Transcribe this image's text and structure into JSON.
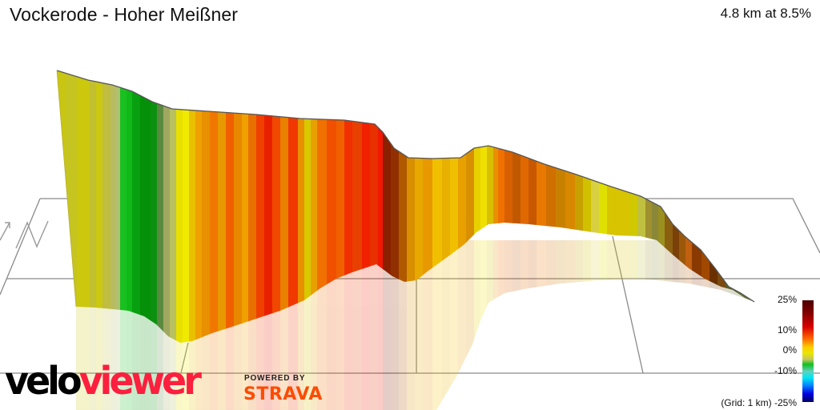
{
  "header": {
    "title": "Vockerode - Hoher Meißner",
    "stats": "4.8 km at 8.5%"
  },
  "legend": {
    "labels": [
      "25%",
      "10%",
      "0%",
      "-10%",
      "(Grid: 1 km) -25%"
    ],
    "grid_note": "(Grid: 1 km)",
    "gradient_stops": [
      {
        "value": "25%",
        "color": "#4a0000"
      },
      {
        "value": "10%",
        "color": "#ff6a00"
      },
      {
        "value": "0%",
        "color": "#10c020"
      },
      {
        "value": "-10%",
        "color": "#00e8f0"
      },
      {
        "value": "-25%",
        "color": "#000060"
      }
    ]
  },
  "branding": {
    "logo_part1": "velo",
    "logo_part2": "viewer",
    "powered_by": "POWERED BY",
    "strava": "STRAVA"
  },
  "colors": {
    "velo": "#000000",
    "viewer": "#fc1f3e",
    "strava": "#fc4c02",
    "grid": "#888888"
  }
}
